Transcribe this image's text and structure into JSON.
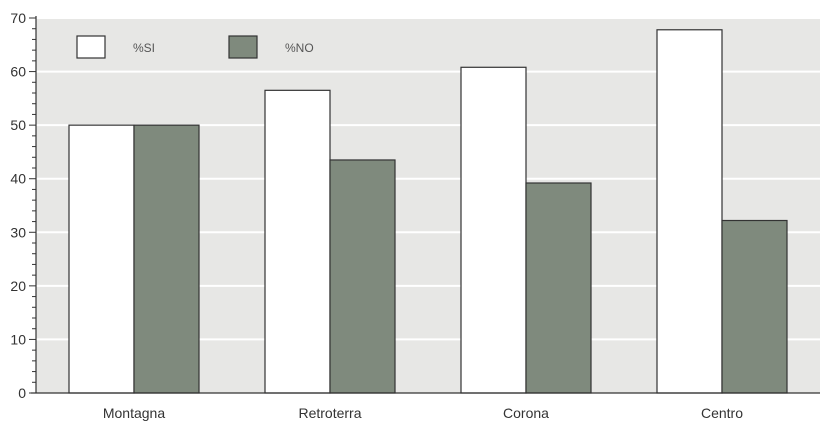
{
  "chart_data": {
    "type": "bar",
    "categories": [
      "Montagna",
      "Retroterra",
      "Corona",
      "Centro"
    ],
    "series": [
      {
        "name": "%SI",
        "values": [
          50,
          56.5,
          60.8,
          67.8
        ]
      },
      {
        "name": "%NO",
        "values": [
          50,
          43.5,
          39.2,
          32.2
        ]
      }
    ],
    "ylim": [
      0,
      70
    ],
    "yticks": [
      0,
      10,
      20,
      30,
      40,
      50,
      60,
      70
    ],
    "ytick_labels": [
      "0",
      "10",
      "20",
      "30",
      "40",
      "50",
      "60",
      "70"
    ],
    "grid": true,
    "legend_position": "top-left",
    "colors": {
      "plot_background": "#e7e7e5",
      "grid": "#ffffff",
      "series": [
        "#ffffff",
        "#7f8a7d"
      ],
      "bar_stroke": "#333333",
      "axis": "#333333"
    }
  }
}
